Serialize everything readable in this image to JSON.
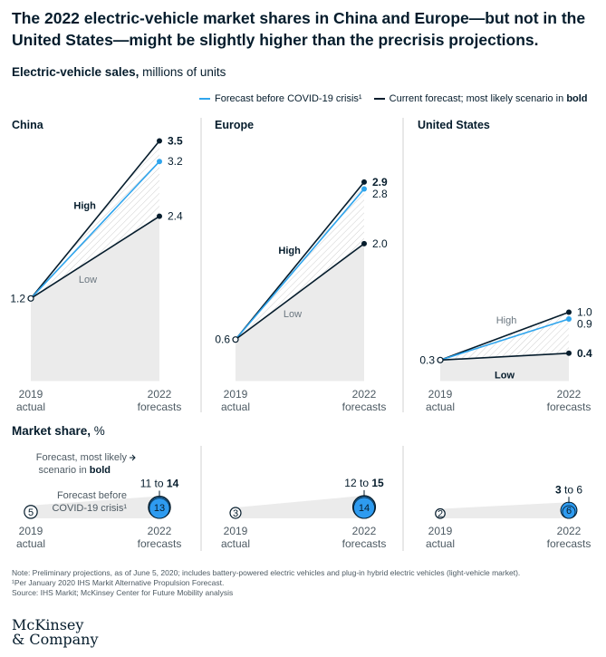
{
  "title": "The 2022 electric-vehicle market shares in China and Europe—but not in the United States—might be slightly higher than the precrisis projections.",
  "subtitle": {
    "bold": "Electric-vehicle sales,",
    "rest": " millions of units"
  },
  "legend": {
    "forecast_before": "Forecast before COVID-19 crisis¹",
    "current_prefix": "Current forecast; most likely scenario in ",
    "current_bold": "bold"
  },
  "colors": {
    "navy": "#051c2c",
    "blue": "#2fa5ed",
    "shade": "#ebebeb",
    "grid": "#d0d0d0",
    "circle_fill": "#2e9bf0"
  },
  "x_labels": {
    "start": [
      "2019",
      "actual"
    ],
    "end": [
      "2022",
      "forecasts"
    ]
  },
  "share_title": {
    "bold": "Market share,",
    "rest": " %"
  },
  "share_annotations": {
    "most_likely": [
      "Forecast, most likely",
      "scenario in "
    ],
    "most_likely_bold": "bold",
    "before": [
      "Forecast before",
      "COVID-19 crisis¹"
    ]
  },
  "chart_data": [
    {
      "type": "line",
      "title": "China",
      "x": [
        "2019 actual",
        "2022 forecasts"
      ],
      "ylim": [
        0,
        3.7
      ],
      "start": 1.2,
      "start_label": "1.2",
      "series": [
        {
          "name": "High",
          "values": [
            1.2,
            3.5
          ],
          "label": "3.5",
          "bold": true,
          "highlight": true
        },
        {
          "name": "Forecast before COVID-19 crisis",
          "values": [
            1.2,
            3.2
          ],
          "label": "3.2",
          "bold": false
        },
        {
          "name": "Low",
          "values": [
            1.2,
            2.4
          ],
          "label": "2.4",
          "bold": false
        }
      ],
      "high_label": "High",
      "low_label": "Low",
      "market_share": {
        "start": 5,
        "start_label": "5",
        "low": 11,
        "high": 14,
        "before": 13,
        "range_low": "11",
        "range_high": "14",
        "before_label": "13",
        "bold_high": true
      }
    },
    {
      "type": "line",
      "title": "Europe",
      "x": [
        "2019 actual",
        "2022 forecasts"
      ],
      "ylim": [
        0,
        3.7
      ],
      "start": 0.6,
      "start_label": "0.6",
      "series": [
        {
          "name": "High",
          "values": [
            0.6,
            2.9
          ],
          "label": "2.9",
          "bold": true,
          "highlight": true
        },
        {
          "name": "Forecast before COVID-19 crisis",
          "values": [
            0.6,
            2.8
          ],
          "label": "2.8",
          "bold": false
        },
        {
          "name": "Low",
          "values": [
            0.6,
            2.0
          ],
          "label": "2.0",
          "bold": false
        }
      ],
      "high_label": "High",
      "low_label": "Low",
      "market_share": {
        "start": 3,
        "start_label": "3",
        "low": 12,
        "high": 15,
        "before": 14,
        "range_low": "12",
        "range_high": "15",
        "before_label": "14",
        "bold_high": true
      }
    },
    {
      "type": "line",
      "title": "United States",
      "x": [
        "2019 actual",
        "2022 forecasts"
      ],
      "ylim": [
        0,
        3.7
      ],
      "start": 0.3,
      "start_label": "0.3",
      "series": [
        {
          "name": "High",
          "values": [
            0.3,
            1.0
          ],
          "label": "1.0",
          "bold": false,
          "highlight": false
        },
        {
          "name": "Forecast before COVID-19 crisis",
          "values": [
            0.3,
            0.9
          ],
          "label": "0.9",
          "bold": false
        },
        {
          "name": "Low",
          "values": [
            0.3,
            0.4
          ],
          "label": "0.4",
          "bold": true
        }
      ],
      "high_label": "High",
      "low_label": "Low",
      "market_share": {
        "start": 2,
        "start_label": "2",
        "low": 3,
        "high": 6,
        "before": 6,
        "range_low": "3",
        "range_high": "6",
        "before_label": "6",
        "bold_low": true
      }
    }
  ],
  "notes": [
    "Note: Preliminary projections, as of June 5, 2020; includes battery-powered electric vehicles and plug-in hybrid electric vehicles (light-vehicle market).",
    "¹Per January 2020 IHS Markit Alternative Propulsion Forecast.",
    "Source: IHS Markit; McKinsey Center for Future Mobility analysis"
  ],
  "logo": [
    "McKinsey",
    "& Company"
  ]
}
